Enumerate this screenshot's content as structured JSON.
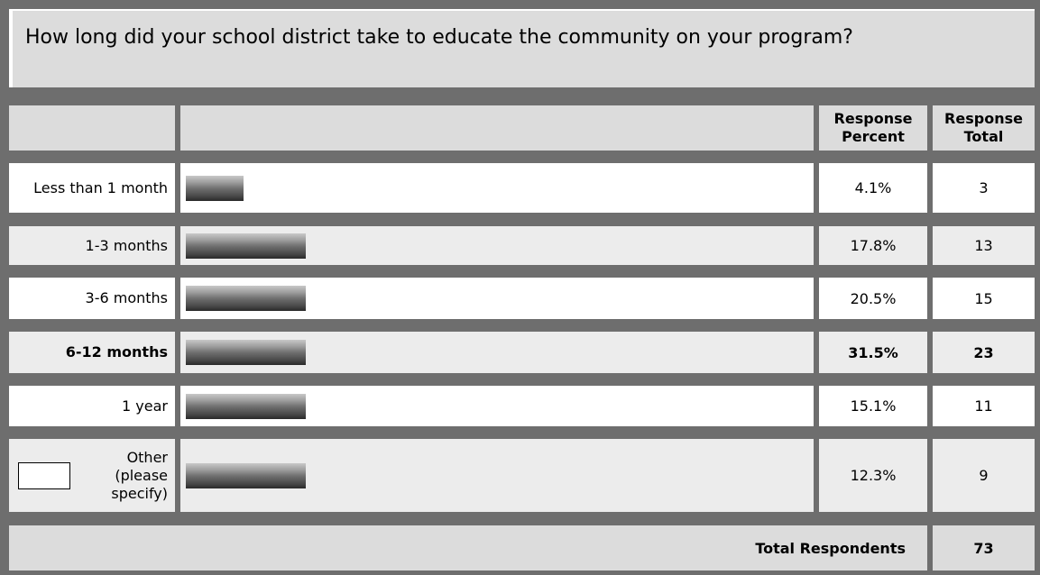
{
  "question": {
    "text": "How long did your school district take to educate the community on your program?"
  },
  "table": {
    "header_percent": "Response Percent",
    "header_total": "Response Total",
    "other_placeholder": "",
    "footer_label": "Total Respondents",
    "footer_total": "73"
  },
  "chart_data": {
    "type": "bar",
    "categories": [
      "Less than 1 month",
      "1-3 months",
      "3-6 months",
      "6-12 months",
      "1 year",
      "Other (please specify)"
    ],
    "values": [
      4.1,
      17.8,
      20.5,
      31.5,
      15.1,
      12.3
    ],
    "bar_fractions": [
      0.31,
      0.64,
      0.64,
      0.64,
      0.64,
      0.64
    ],
    "percent_labels": [
      "4.1%",
      "17.8%",
      "20.5%",
      "31.5%",
      "15.1%",
      "12.3%"
    ],
    "totals": [
      "3",
      "13",
      "15",
      "23",
      "11",
      "9"
    ],
    "highlight_index": 3,
    "colors": {
      "frame": "#6e6e6e",
      "row_white": "#ffffff",
      "row_grey": "#ececec",
      "header": "#dcdcdc"
    }
  }
}
